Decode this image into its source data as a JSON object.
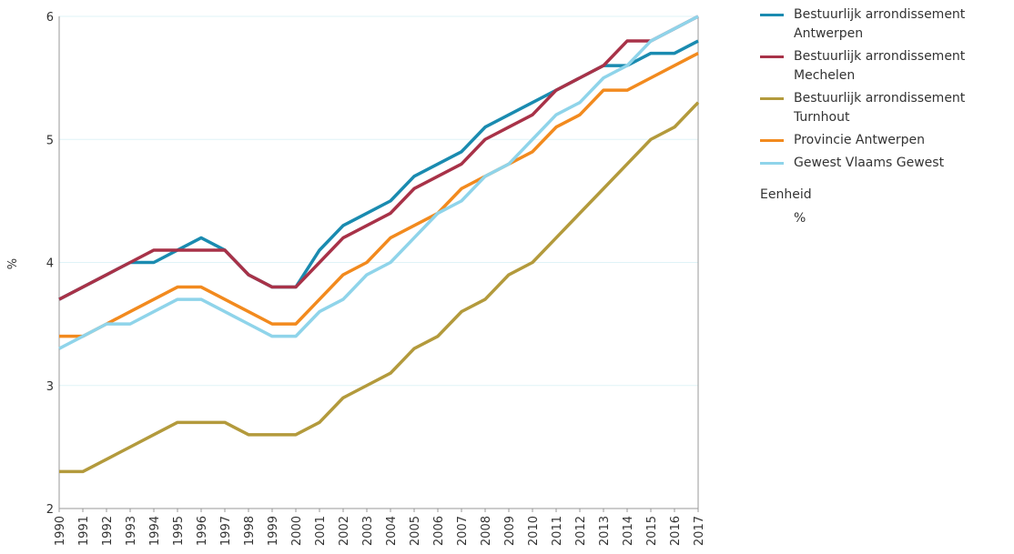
{
  "chart_data": {
    "type": "line",
    "y_label": "%",
    "categories": [
      "1990",
      "1991",
      "1992",
      "1993",
      "1994",
      "1995",
      "1996",
      "1997",
      "1998",
      "1999",
      "2000",
      "2001",
      "2002",
      "2003",
      "2004",
      "2005",
      "2006",
      "2007",
      "2008",
      "2009",
      "2010",
      "2011",
      "2012",
      "2013",
      "2014",
      "2015",
      "2016",
      "2017"
    ],
    "series": [
      {
        "name": "Bestuurlijk arrondissement Antwerpen",
        "color": "#1a8bb0",
        "values": [
          3.7,
          3.8,
          3.9,
          4.0,
          4.0,
          4.1,
          4.2,
          4.1,
          3.9,
          3.8,
          3.8,
          4.1,
          4.3,
          4.4,
          4.5,
          4.7,
          4.8,
          4.9,
          5.1,
          5.2,
          5.3,
          5.4,
          5.5,
          5.6,
          5.6,
          5.7,
          5.7,
          5.8
        ]
      },
      {
        "name": "Bestuurlijk arrondissement Mechelen",
        "color": "#a83248",
        "values": [
          3.7,
          3.8,
          3.9,
          4.0,
          4.1,
          4.1,
          4.1,
          4.1,
          3.9,
          3.8,
          3.8,
          4.0,
          4.2,
          4.3,
          4.4,
          4.6,
          4.7,
          4.8,
          5.0,
          5.1,
          5.2,
          5.4,
          5.5,
          5.6,
          5.8,
          5.8,
          5.9,
          6.0
        ]
      },
      {
        "name": "Bestuurlijk arrondissement Turnhout",
        "color": "#b39a3c",
        "values": [
          2.3,
          2.3,
          2.4,
          2.5,
          2.6,
          2.7,
          2.7,
          2.7,
          2.6,
          2.6,
          2.6,
          2.7,
          2.9,
          3.0,
          3.1,
          3.3,
          3.4,
          3.6,
          3.7,
          3.9,
          4.0,
          4.2,
          4.4,
          4.6,
          4.8,
          5.0,
          5.1,
          5.3
        ]
      },
      {
        "name": "Provincie Antwerpen",
        "color": "#f28a1e",
        "values": [
          3.4,
          3.4,
          3.5,
          3.6,
          3.7,
          3.8,
          3.8,
          3.7,
          3.6,
          3.5,
          3.5,
          3.7,
          3.9,
          4.0,
          4.2,
          4.3,
          4.4,
          4.6,
          4.7,
          4.8,
          4.9,
          5.1,
          5.2,
          5.4,
          5.4,
          5.5,
          5.6,
          5.7
        ]
      },
      {
        "name": "Gewest Vlaams Gewest",
        "color": "#8fd4ea",
        "values": [
          3.3,
          3.4,
          3.5,
          3.5,
          3.6,
          3.7,
          3.7,
          3.6,
          3.5,
          3.4,
          3.4,
          3.6,
          3.7,
          3.9,
          4.0,
          4.2,
          4.4,
          4.5,
          4.7,
          4.8,
          5.0,
          5.2,
          5.3,
          5.5,
          5.6,
          5.8,
          5.9,
          6.0
        ]
      }
    ],
    "ylim": [
      2,
      6
    ],
    "yticks": [
      2,
      3,
      4,
      5,
      6
    ],
    "grid": true,
    "legend_title": "Eenheid",
    "legend_unit": "%"
  }
}
